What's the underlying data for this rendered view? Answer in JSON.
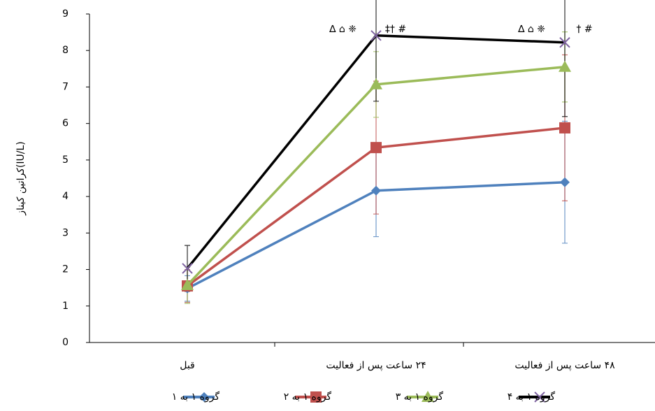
{
  "chart_data": {
    "type": "line",
    "y_label": "کراتین کیناز(IU/L)",
    "categories": [
      "قبل",
      "۲۴ ساعت پس از فعالیت",
      "۴۸ ساعت پس از فعالیت"
    ],
    "ylim": [
      0,
      9
    ],
    "yticks": [
      0,
      1,
      2,
      3,
      4,
      5,
      6,
      7,
      8,
      9
    ],
    "series": [
      {
        "name": "گروه ۱ به ۱",
        "color": "#4f81bd",
        "marker": "diamond",
        "values": [
          1.48,
          4.16,
          4.39
        ],
        "errors": [
          0.35,
          1.26,
          1.67
        ]
      },
      {
        "name": "گروه ۱ به ۲",
        "color": "#c0504d",
        "marker": "square",
        "values": [
          1.55,
          5.34,
          5.88
        ],
        "errors": [
          0.45,
          1.82,
          2.0
        ]
      },
      {
        "name": "گروه ۱ به ۳",
        "color": "#9bbb59",
        "marker": "triangle",
        "values": [
          1.57,
          7.07,
          7.55
        ],
        "errors": [
          0.5,
          0.9,
          0.96
        ]
      },
      {
        "name": "گروه ۱ به ۴",
        "color": "#000000",
        "marker": "x",
        "values": [
          2.03,
          8.41,
          8.22
        ],
        "errors": [
          0.63,
          1.8,
          2.03
        ]
      }
    ],
    "annotations": [
      {
        "category": 1,
        "text": "∆ ⌂ ❈",
        "offset": -1
      },
      {
        "category": 1,
        "text": "‡† #",
        "offset": 1
      },
      {
        "category": 2,
        "text": "∆ ⌂ ❈",
        "offset": -1
      },
      {
        "category": 2,
        "text": "† #",
        "offset": 1
      }
    ]
  }
}
